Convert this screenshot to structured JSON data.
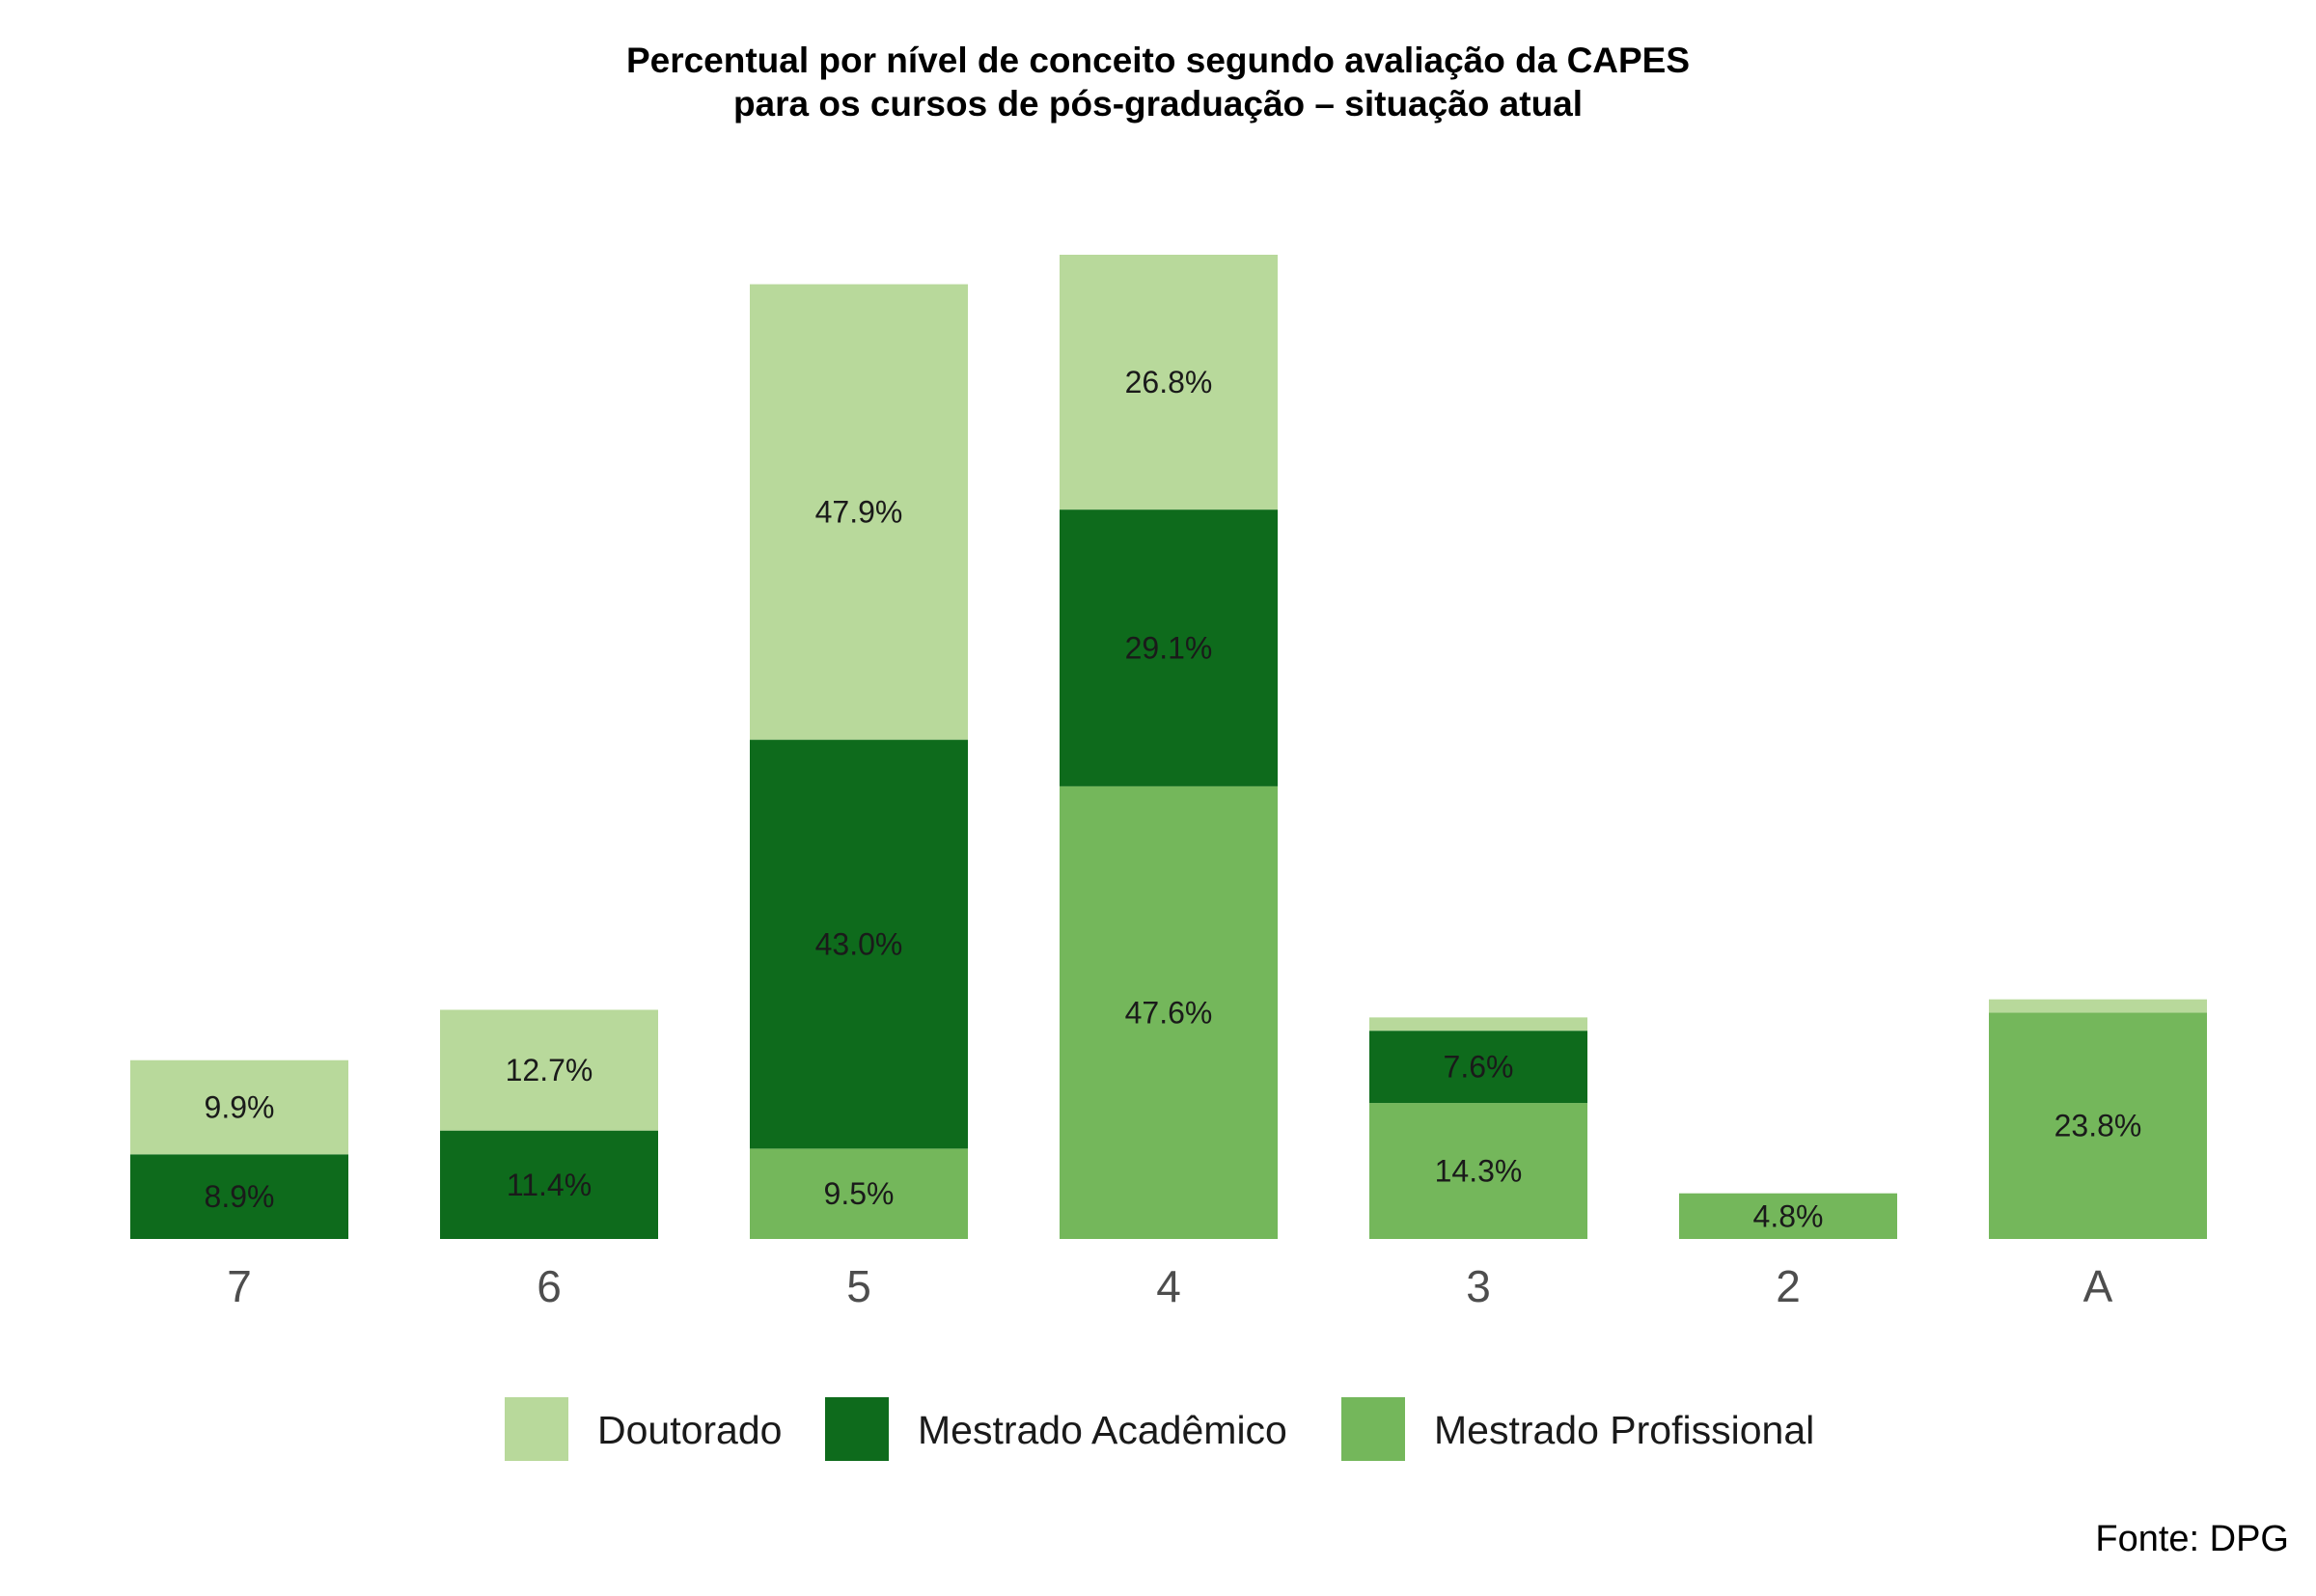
{
  "chart_data": {
    "type": "bar",
    "stacked": true,
    "title": "Percentual por nível de conceito segundo avaliação da CAPES",
    "subtitle": "para os cursos de pós-graduação – situação atual",
    "caption": "Fonte: DPG",
    "categories": [
      "7",
      "6",
      "5",
      "4",
      "3",
      "2",
      "A"
    ],
    "series": [
      {
        "name": "Mestrado Profissional",
        "color": "#74b75b",
        "values": [
          0,
          0,
          9.5,
          47.6,
          14.3,
          4.8,
          23.8
        ],
        "labels": [
          "",
          "",
          "9.5%",
          "47.6%",
          "14.3%",
          "4.8%",
          "23.8%"
        ]
      },
      {
        "name": "Mestrado Acadêmico",
        "color": "#0e6b1c",
        "values": [
          8.9,
          11.4,
          43.0,
          29.1,
          7.6,
          0,
          0
        ],
        "labels": [
          "8.9%",
          "11.4%",
          "43.0%",
          "29.1%",
          "7.6%",
          "",
          ""
        ]
      },
      {
        "name": "Doutorado",
        "color": "#b8d99b",
        "values": [
          9.9,
          12.7,
          47.9,
          26.8,
          1.4,
          0,
          1.4
        ],
        "labels": [
          "9.9%",
          "12.7%",
          "47.9%",
          "26.8%",
          "",
          "",
          ""
        ]
      }
    ],
    "legend": {
      "position": "bottom",
      "order": [
        "Doutorado",
        "Mestrado Acadêmico",
        "Mestrado Profissional"
      ]
    },
    "ylim": [
      0,
      103.5
    ],
    "grid": false
  }
}
